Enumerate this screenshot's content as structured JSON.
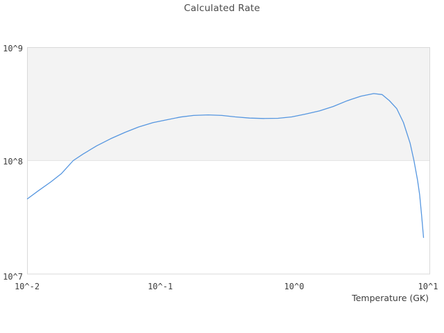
{
  "title": "Calculated Rate",
  "axes": {
    "x_label": "Temperature (GK)",
    "x_ticks": [
      "10^-2",
      "10^-1",
      "10^0",
      "10^1"
    ],
    "y_ticks": [
      "10^9",
      "10^8",
      "10^7"
    ]
  },
  "colors": {
    "line": "#5596e0",
    "band_fill": "#f3f3f3",
    "band_edge": "#e5e5e5",
    "border": "#d9d9d9",
    "text": "#3d3d3d"
  },
  "chart_data": {
    "type": "line",
    "title": "Calculated Rate",
    "xlabel": "Temperature (GK)",
    "ylabel": "",
    "x_scale": "log",
    "y_scale": "log",
    "xlim": [
      0.01,
      10.4
    ],
    "ylim": [
      10000000.0,
      1000000000.0
    ],
    "grid": "shaded band between 1e8 and 1e9",
    "legend": "none",
    "shaded_band_y": [
      100000000.0,
      1000000000.0
    ],
    "series_name": "Calculated Rate",
    "x": [
      0.01,
      0.012,
      0.015,
      0.018,
      0.022,
      0.026,
      0.033,
      0.042,
      0.054,
      0.068,
      0.087,
      0.11,
      0.14,
      0.175,
      0.225,
      0.285,
      0.36,
      0.46,
      0.585,
      0.75,
      0.95,
      1.2,
      1.53,
      1.94,
      2.47,
      3.13,
      3.9,
      4.5,
      5.1,
      5.8,
      6.5,
      7.3,
      7.8,
      8.3,
      8.6,
      8.9,
      9.2
    ],
    "y": [
      46000000.0,
      54000000.0,
      65000000.0,
      77000000.0,
      100000000.0,
      114000000.0,
      135000000.0,
      156000000.0,
      178000000.0,
      198000000.0,
      216000000.0,
      229000000.0,
      242000000.0,
      250000000.0,
      253000000.0,
      250000000.0,
      243000000.0,
      237000000.0,
      235000000.0,
      236000000.0,
      243000000.0,
      257000000.0,
      274000000.0,
      300000000.0,
      337000000.0,
      370000000.0,
      390000000.0,
      382000000.0,
      338000000.0,
      287000000.0,
      217000000.0,
      142000000.0,
      100000000.0,
      67000000.0,
      50000000.0,
      33000000.0,
      21000000.0
    ]
  }
}
